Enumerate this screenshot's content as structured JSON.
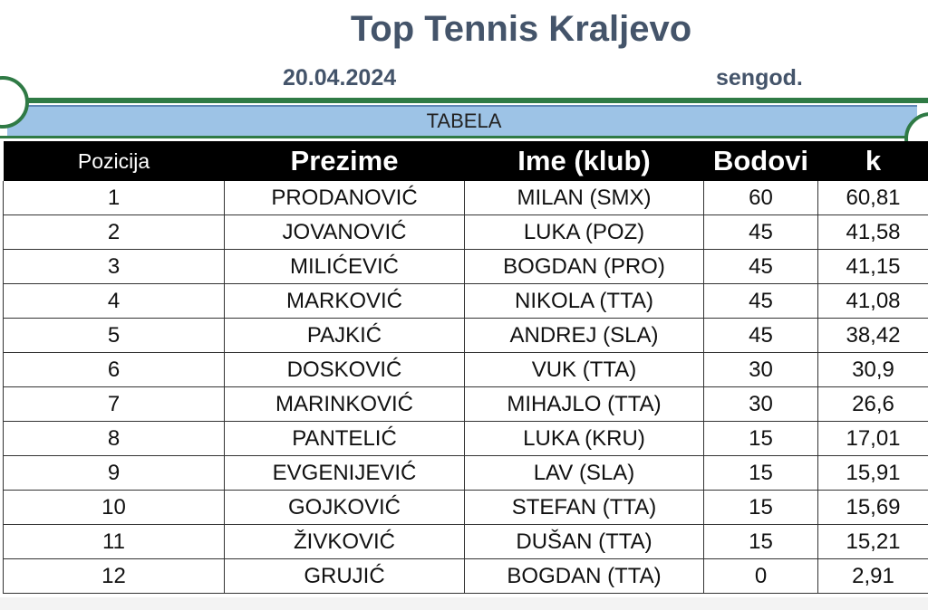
{
  "header": {
    "title": "Top Tennis Kraljevo",
    "date": "20.04.2024",
    "category": "sengod."
  },
  "section_label": "TABELA",
  "columns": [
    "Pozicija",
    "Prezime",
    "Ime (klub)",
    "Bodovi",
    "k"
  ],
  "rows": [
    {
      "pos": "1",
      "prezime": "PRODANOVIĆ",
      "ime": "MILAN (SMX)",
      "bodovi": "60",
      "k": "60,81"
    },
    {
      "pos": "2",
      "prezime": "JOVANOVIĆ",
      "ime": "LUKA (POZ)",
      "bodovi": "45",
      "k": "41,58"
    },
    {
      "pos": "3",
      "prezime": "MILIĆEVIĆ",
      "ime": "BOGDAN (PRO)",
      "bodovi": "45",
      "k": "41,15"
    },
    {
      "pos": "4",
      "prezime": "MARKOVIĆ",
      "ime": "NIKOLA (TTA)",
      "bodovi": "45",
      "k": "41,08"
    },
    {
      "pos": "5",
      "prezime": "PAJKIĆ",
      "ime": "ANDREJ (SLA)",
      "bodovi": "45",
      "k": "38,42"
    },
    {
      "pos": "6",
      "prezime": "DOSKOVIĆ",
      "ime": "VUK (TTA)",
      "bodovi": "30",
      "k": "30,9"
    },
    {
      "pos": "7",
      "prezime": "MARINKOVIĆ",
      "ime": "MIHAJLO (TTA)",
      "bodovi": "30",
      "k": "26,6"
    },
    {
      "pos": "8",
      "prezime": "PANTELIĆ",
      "ime": "LUKA (KRU)",
      "bodovi": "15",
      "k": "17,01"
    },
    {
      "pos": "9",
      "prezime": "EVGENIJEVIĆ",
      "ime": "LAV (SLA)",
      "bodovi": "15",
      "k": "15,91"
    },
    {
      "pos": "10",
      "prezime": "GOJKOVIĆ",
      "ime": "STEFAN (TTA)",
      "bodovi": "15",
      "k": "15,69"
    },
    {
      "pos": "11",
      "prezime": "ŽIVKOVIĆ",
      "ime": "DUŠAN (TTA)",
      "bodovi": "15",
      "k": "15,21"
    },
    {
      "pos": "12",
      "prezime": "GRUJIĆ",
      "ime": "BOGDAN (TTA)",
      "bodovi": "0",
      "k": "2,91"
    }
  ],
  "colors": {
    "title": "#44546a",
    "accent_green": "#2f7a45",
    "tabela_bar": "#9dc3e6",
    "header_bg": "#000000"
  }
}
